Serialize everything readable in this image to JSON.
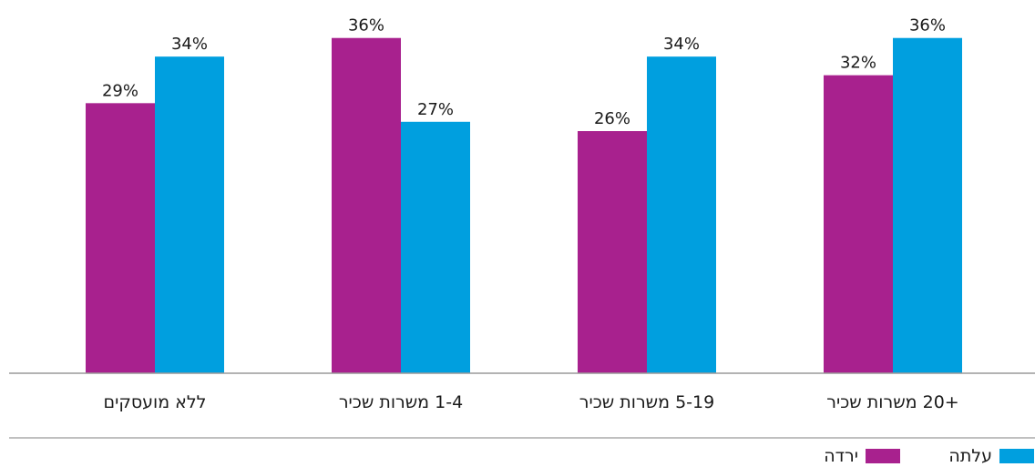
{
  "chart_data": {
    "type": "bar",
    "orientation": "vertical",
    "direction": "rtl",
    "categories": [
      "+20 משרות שכיר",
      "5-19 משרות שכיר",
      "1-4 משרות שכיר",
      "ללא מועסקים"
    ],
    "series": [
      {
        "name": "עלתה",
        "color": "#009fdf",
        "values": [
          36,
          34,
          27,
          34
        ],
        "labels": [
          "36%",
          "34%",
          "27%",
          "34%"
        ]
      },
      {
        "name": "ירדה",
        "color": "#a8218e",
        "values": [
          32,
          26,
          36,
          29
        ],
        "labels": [
          "32%",
          "26%",
          "36%",
          "29%"
        ]
      }
    ],
    "ylim": [
      0,
      38
    ],
    "grid": false,
    "legend": "bottom-right"
  }
}
